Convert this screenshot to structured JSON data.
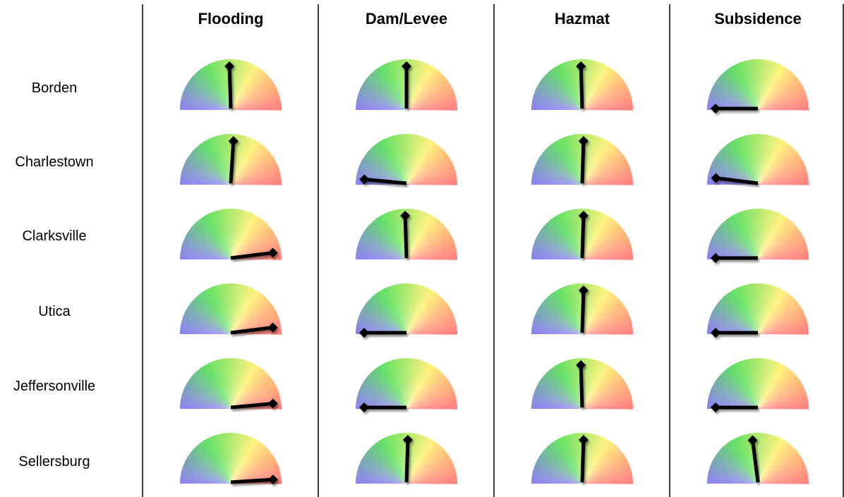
{
  "chart_data": {
    "type": "gauge-matrix",
    "columns": [
      "Flooding",
      "Dam/Levee",
      "Hazmat",
      "Subsidence"
    ],
    "rows": [
      "Borden",
      "Charlestown",
      "Clarksville",
      "Utica",
      "Jeffersonville",
      "Sellersburg"
    ],
    "needle_scale": "0 = far left, 1 = far right",
    "values": [
      [
        0.49,
        0.5,
        0.49,
        0.0
      ],
      [
        0.52,
        0.03,
        0.51,
        0.04
      ],
      [
        0.96,
        0.49,
        0.51,
        0.0
      ],
      [
        0.96,
        0.0,
        0.51,
        0.0
      ],
      [
        0.97,
        0.0,
        0.49,
        0.0
      ],
      [
        0.98,
        0.51,
        0.51,
        0.46
      ]
    ],
    "gauge_colors": [
      "#7b6cf0",
      "#5fe05f",
      "#fff27a",
      "#ff6b6b"
    ],
    "needle_color": "#000000"
  }
}
